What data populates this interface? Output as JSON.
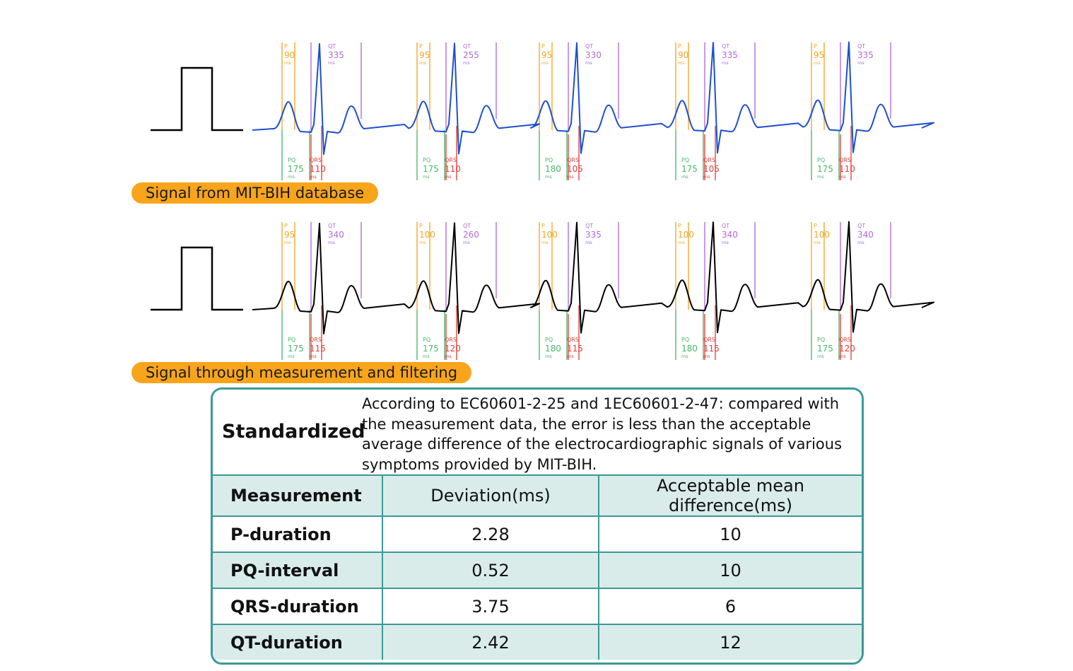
{
  "panels": [
    {
      "title": "Signal from MIT-BIH database",
      "trace_color": "#1f4fd0",
      "beats": [
        {
          "p": "90",
          "qt": "335",
          "pq": "175",
          "qrs": "110"
        },
        {
          "p": "95",
          "qt": "255",
          "pq": "175",
          "qrs": "110"
        },
        {
          "p": "95",
          "qt": "330",
          "pq": "180",
          "qrs": "105"
        },
        {
          "p": "90",
          "qt": "335",
          "pq": "175",
          "qrs": "105"
        },
        {
          "p": "95",
          "qt": "335",
          "pq": "175",
          "qrs": "110"
        }
      ]
    },
    {
      "title": "Signal through measurement and filtering",
      "trace_color": "#000000",
      "beats": [
        {
          "p": "95",
          "qt": "340",
          "pq": "175",
          "qrs": "115"
        },
        {
          "p": "100",
          "qt": "260",
          "pq": "175",
          "qrs": "120"
        },
        {
          "p": "100",
          "qt": "335",
          "pq": "180",
          "qrs": "115"
        },
        {
          "p": "100",
          "qt": "340",
          "pq": "180",
          "qrs": "115"
        },
        {
          "p": "100",
          "qt": "340",
          "pq": "175",
          "qrs": "120"
        }
      ]
    }
  ],
  "labels": {
    "p": "P",
    "qt": "QT",
    "pq": "PQ",
    "qrs": "QRS",
    "unit": "ms"
  },
  "marker_colors": {
    "p": "#f5a623",
    "qt": "#b36ad8",
    "pq": "#47b86a",
    "qrs": "#e0413b"
  },
  "standardized": {
    "title": "Standardized",
    "text": "According to EC60601-2-25 and 1EC60601-2-47: compared with the measurement data, the error is less than the acceptable average difference of the electrocardiographic signals of various symptoms provided by MIT-BIH."
  },
  "table": {
    "headers": [
      "Measurement",
      "Deviation(ms)",
      "Acceptable mean difference(ms)"
    ],
    "rows": [
      [
        "P-duration",
        "2.28",
        "10"
      ],
      [
        "PQ-interval",
        "0.52",
        "10"
      ],
      [
        "QRS-duration",
        "3.75",
        "6"
      ],
      [
        "QT-duration",
        "2.42",
        "12"
      ]
    ]
  },
  "colors": {
    "accent": "#f8a51c",
    "table_border": "#3a9a98",
    "table_shade": "#d9ecea"
  }
}
